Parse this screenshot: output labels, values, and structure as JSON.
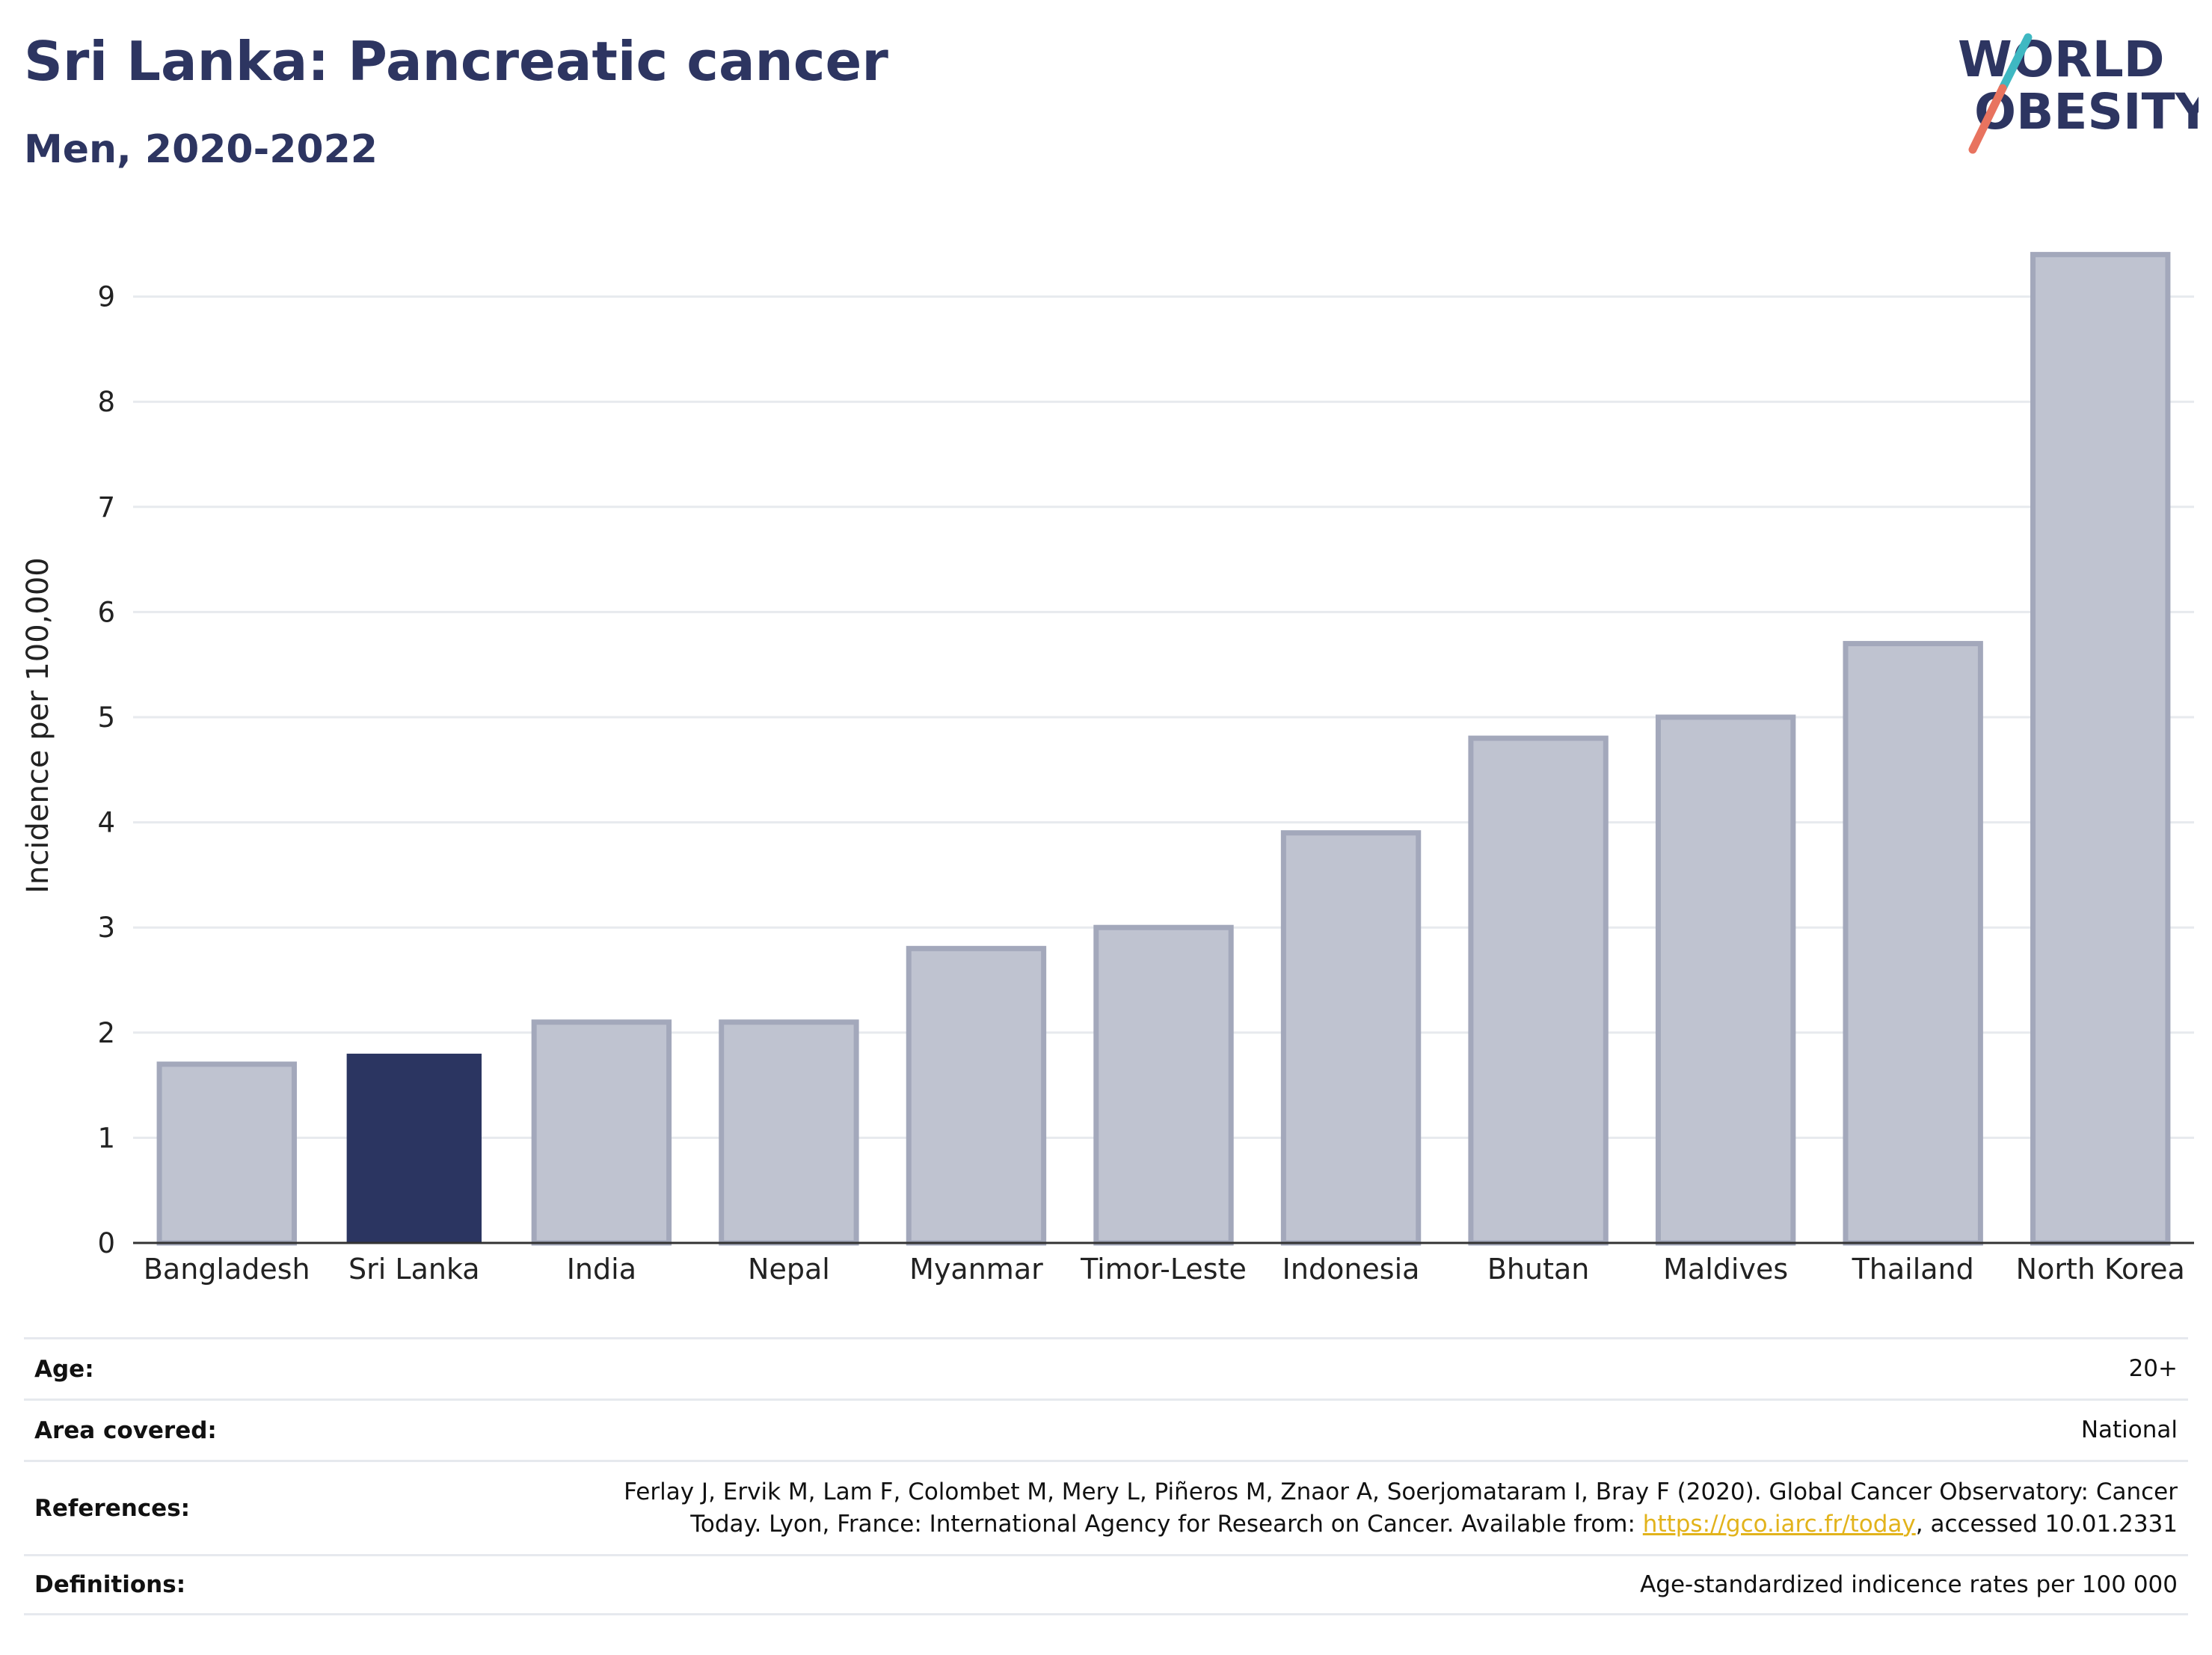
{
  "header": {
    "title": "Sri Lanka: Pancreatic cancer",
    "subtitle": "Men, 2020-2022",
    "logo_line1": "WORLD",
    "logo_line2": "OBESITY"
  },
  "chart_data": {
    "type": "bar",
    "categories": [
      "Bangladesh",
      "Sri Lanka",
      "India",
      "Nepal",
      "Myanmar",
      "Timor-Leste",
      "Indonesia",
      "Bhutan",
      "Maldives",
      "Thailand",
      "North Korea"
    ],
    "values": [
      1.7,
      1.8,
      2.1,
      2.1,
      2.8,
      3.0,
      3.9,
      4.8,
      5.0,
      5.7,
      9.4
    ],
    "highlight": "Sri Lanka",
    "ylabel": "Incidence per 100,000",
    "ylim": [
      0,
      9.7
    ],
    "yticks": [
      0,
      1,
      2,
      3,
      4,
      5,
      6,
      7,
      8,
      9
    ],
    "grid": true,
    "colors": {
      "bar_fill": "#bfc3d0",
      "bar_stroke": "#a3a8bb",
      "highlight_fill": "#2b3561",
      "grid": "#e7eaee",
      "axis": "#333333"
    }
  },
  "meta": {
    "rows": [
      {
        "label": "Age:",
        "value": "20+"
      },
      {
        "label": "Area covered:",
        "value": "National"
      },
      {
        "label": "References:",
        "value_line1": "Ferlay J, Ervik M, Lam F, Colombet M, Mery L, Piñeros M, Znaor A, Soerjomataram I, Bray F (2020). Global Cancer Observatory: Cancer",
        "value_line2_pre": "Today. Lyon, France: International Agency for Research on Cancer. Available from: ",
        "link": "https://gco.iarc.fr/today",
        "value_line2_post": ", accessed 10.01.2331"
      },
      {
        "label": "Definitions:",
        "value": "Age-standardized indicence rates per 100 000"
      }
    ]
  }
}
